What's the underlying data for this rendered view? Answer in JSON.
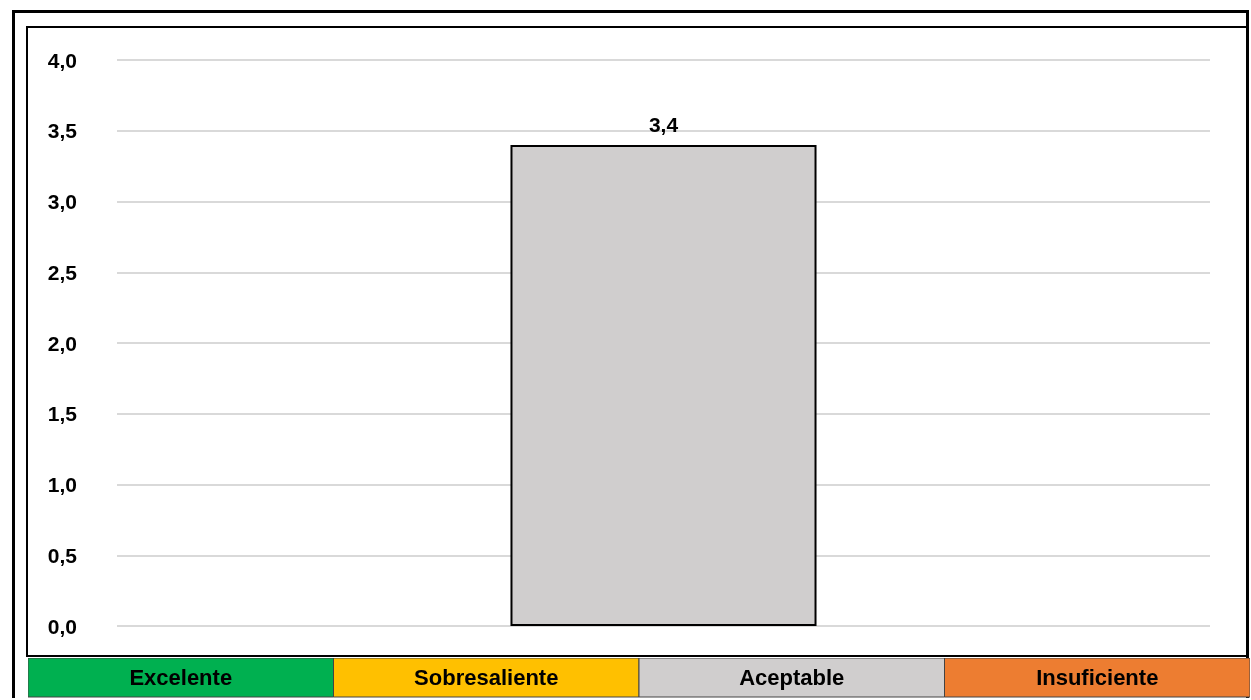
{
  "chart_data": [
    {
      "type": "bar",
      "categories": [
        null
      ],
      "series": [
        {
          "color": "#d0cece",
          "values": [
            3.4
          ],
          "value_labels": [
            "3,4"
          ]
        }
      ],
      "ylim": [
        0,
        4
      ],
      "yticks": [
        {
          "value": 0,
          "label": "0,0"
        },
        {
          "value": 0.5,
          "label": "0,5"
        },
        {
          "value": 1,
          "label": "1,0"
        },
        {
          "value": 1.5,
          "label": "1,5"
        },
        {
          "value": 2,
          "label": "2,0"
        },
        {
          "value": 2.5,
          "label": "2,5"
        },
        {
          "value": 3,
          "label": "3,0"
        },
        {
          "value": 3.5,
          "label": "3,5"
        },
        {
          "value": 4,
          "label": "4,0"
        }
      ],
      "grid": "y"
    },
    {
      "type": "other",
      "categories": [
        "Excelente",
        "Sobresaliente",
        "Aceptable",
        "Insuficiente"
      ],
      "colors": [
        "#00b050",
        "#ffc000",
        "#d0cece",
        "#ed7d31"
      ]
    }
  ]
}
